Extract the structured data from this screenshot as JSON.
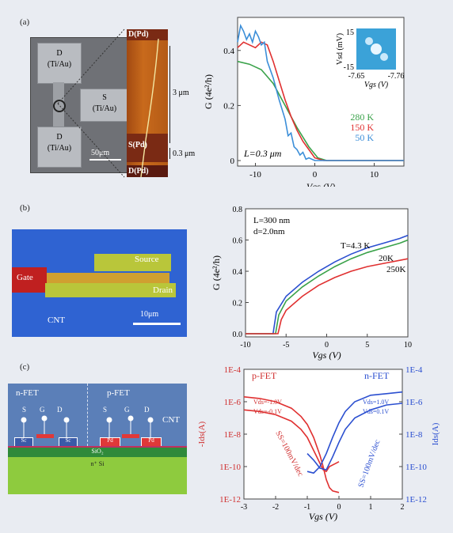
{
  "panels": {
    "a": {
      "label": "(a)",
      "sem": {
        "pad_top": "D\n(Ti/Au)",
        "pad_mid": "S\n(Ti/Au)",
        "pad_bot": "D\n(Ti/Au)",
        "scale": "50μm"
      },
      "afm": {
        "top": "D(Pd)",
        "mid": "S(Pd)",
        "bot": "D(Pd)",
        "scale1": "3 μm",
        "scale2": "0.3 μm"
      },
      "chart": {
        "ylabel": "G (4e²/h)",
        "xlabel": "Vgs (V)",
        "annotation": "L=0.3 μm",
        "inset": {
          "ylabel": "Vsd (mV)",
          "xlabel": "Vgs (V)",
          "ytop": "15",
          "ybot": "-15",
          "xleft": "-7.65",
          "xright": "-7.76"
        }
      }
    },
    "b": {
      "label": "(b)",
      "img": {
        "source": "Source",
        "gate": "Gate",
        "drain": "Drain",
        "cnt": "CNT",
        "scale": "10μm"
      },
      "chart": {
        "ylabel": "G (4e²/h)",
        "xlabel": "Vgs (V)",
        "note1": "L=300 nm",
        "note2": "d=2.0nm"
      }
    },
    "c": {
      "label": "(c)",
      "diagram": {
        "nfet": "n-FET",
        "pfet": "p-FET",
        "cnt": "CNT",
        "s": "S",
        "g": "G",
        "d": "D",
        "sc": "Sc",
        "pd": "Pd",
        "sio2": "SiO₂",
        "si": "n⁺ Si"
      },
      "chart": {
        "xlabel": "Vgs (V)",
        "ylabel_left": "-Ids(A)",
        "ylabel_right": "Ids(A)",
        "pfet": "p-FET",
        "nfet": "n-FET",
        "p_v1": "Vds=-1.0V",
        "p_v2": "Vds=-0.1V",
        "n_v1": "Vds=1.0V",
        "n_v2": "Vds=0.1V",
        "ss_p": "SS=100mV/dec",
        "ss_n": "SS=100mV/dec"
      }
    }
  },
  "chart_data": [
    {
      "type": "line",
      "xlabel": "Vgs (V)",
      "ylabel": "G (4e²/h)",
      "xlim": [
        -13,
        15
      ],
      "ylim": [
        -0.02,
        0.52
      ],
      "xticks": [
        -10,
        0,
        10
      ],
      "yticks": [
        0,
        0.2,
        0.4
      ],
      "series": [
        {
          "name": "280 K",
          "color": "#3aa24a",
          "x": [
            -13,
            -11,
            -9,
            -7,
            -5,
            -3,
            -1,
            0.5,
            2,
            15
          ],
          "y": [
            0.36,
            0.35,
            0.33,
            0.28,
            0.2,
            0.12,
            0.05,
            0.01,
            0,
            0
          ]
        },
        {
          "name": "150 K",
          "color": "#e03030",
          "x": [
            -13,
            -12,
            -11,
            -10,
            -9,
            -8,
            -7,
            -6,
            -5,
            -4,
            -3,
            -2,
            -1,
            0,
            1.5,
            15
          ],
          "y": [
            0.41,
            0.43,
            0.42,
            0.41,
            0.43,
            0.42,
            0.36,
            0.29,
            0.22,
            0.16,
            0.11,
            0.07,
            0.04,
            0.01,
            0,
            0
          ]
        },
        {
          "name": "50 K",
          "color": "#3b8ed8",
          "x": [
            -13,
            -12.5,
            -12,
            -11.5,
            -11,
            -10.5,
            -10,
            -9.5,
            -9,
            -8.5,
            -8,
            -7,
            -6,
            -5,
            -4.5,
            -4,
            -3.5,
            -3,
            -2.5,
            -2,
            -1.5,
            -1,
            0,
            15
          ],
          "y": [
            0.43,
            0.49,
            0.47,
            0.44,
            0.46,
            0.43,
            0.47,
            0.45,
            0.42,
            0.43,
            0.36,
            0.3,
            0.22,
            0.15,
            0.09,
            0.1,
            0.05,
            0.04,
            0.02,
            0.03,
            0.005,
            0.01,
            0,
            0
          ]
        }
      ]
    },
    {
      "type": "line",
      "xlabel": "Vgs (V)",
      "ylabel": "G (4e²/h)",
      "xlim": [
        -10,
        10
      ],
      "ylim": [
        -0.02,
        0.8
      ],
      "xticks": [
        -10,
        -5,
        0,
        5,
        10
      ],
      "yticks": [
        0,
        0.2,
        0.4,
        0.6,
        0.8
      ],
      "series": [
        {
          "name": "T=4.3 K",
          "color": "#2b4fd0",
          "x": [
            -10,
            -6.6,
            -6.2,
            -5,
            -3,
            -1,
            1,
            3,
            5,
            7,
            9,
            10
          ],
          "y": [
            0,
            0,
            0.14,
            0.24,
            0.33,
            0.4,
            0.46,
            0.51,
            0.55,
            0.58,
            0.61,
            0.63
          ]
        },
        {
          "name": "20K",
          "color": "#3aa24a",
          "x": [
            -10,
            -6.3,
            -5.9,
            -5,
            -3,
            -1,
            1,
            3,
            5,
            7,
            9,
            10
          ],
          "y": [
            0,
            0,
            0.12,
            0.21,
            0.3,
            0.37,
            0.43,
            0.48,
            0.52,
            0.55,
            0.58,
            0.6
          ]
        },
        {
          "name": "250K",
          "color": "#e03030",
          "x": [
            -10,
            -6,
            -5.6,
            -5,
            -3,
            -1,
            1,
            3,
            5,
            7,
            9,
            10
          ],
          "y": [
            0,
            0,
            0.09,
            0.15,
            0.24,
            0.31,
            0.36,
            0.4,
            0.43,
            0.45,
            0.47,
            0.48
          ]
        }
      ]
    },
    {
      "type": "line",
      "xlabel": "Vgs (V)",
      "ylabel_left": "-Ids(A)",
      "ylabel_right": "Ids(A)",
      "xlim": [
        -3,
        2
      ],
      "ylim_log10": [
        -12,
        -4
      ],
      "xticks": [
        -3,
        -2,
        -1,
        0,
        1,
        2
      ],
      "yticks_left": [
        "1E-4",
        "1E-6",
        "1E-8",
        "1E-10",
        "1E-12"
      ],
      "yticks_right": [
        "1E-4",
        "1E-6",
        "1E-8",
        "1E-10",
        "1E-12"
      ],
      "series": [
        {
          "name": "p-FET Vds=-1.0V",
          "color": "#e03030",
          "x": [
            -3,
            -2.5,
            -2,
            -1.5,
            -1.2,
            -1,
            -0.8,
            -0.6,
            -0.5,
            -0.4,
            -0.3,
            -0.2,
            0
          ],
          "y_log10": [
            -5.7,
            -5.8,
            -6,
            -6.4,
            -6.9,
            -7.4,
            -8.2,
            -9.3,
            -10,
            -10.8,
            -11.3,
            -11.5,
            -11.6
          ]
        },
        {
          "name": "p-FET Vds=-0.1V",
          "color": "#e03030",
          "x": [
            -3,
            -2.5,
            -2,
            -1.5,
            -1.2,
            -1,
            -0.8,
            -0.6,
            -0.5,
            -0.4,
            -0.3,
            -0.1,
            0
          ],
          "y_log10": [
            -6.5,
            -6.6,
            -6.8,
            -7.2,
            -7.7,
            -8.2,
            -9,
            -9.8,
            -10.2,
            -10.3,
            -10.0,
            -9.8,
            -9.7
          ]
        },
        {
          "name": "n-FET Vds=1.0V",
          "color": "#2b4fd0",
          "x": [
            -1,
            -0.8,
            -0.6,
            -0.4,
            -0.2,
            0,
            0.2,
            0.5,
            1,
            1.5,
            2
          ],
          "y_log10": [
            -10.3,
            -10.4,
            -10,
            -9.2,
            -8.2,
            -7.3,
            -6.6,
            -6,
            -5.6,
            -5.5,
            -5.4
          ]
        },
        {
          "name": "n-FET Vds=0.1V",
          "color": "#2b4fd0",
          "x": [
            -1,
            -0.8,
            -0.6,
            -0.4,
            -0.2,
            0,
            0.2,
            0.5,
            1,
            1.5,
            2
          ],
          "y_log10": [
            -9.2,
            -9.6,
            -10.1,
            -10.2,
            -9.4,
            -8.5,
            -7.7,
            -7,
            -6.5,
            -6.2,
            -6.1
          ]
        }
      ]
    }
  ]
}
